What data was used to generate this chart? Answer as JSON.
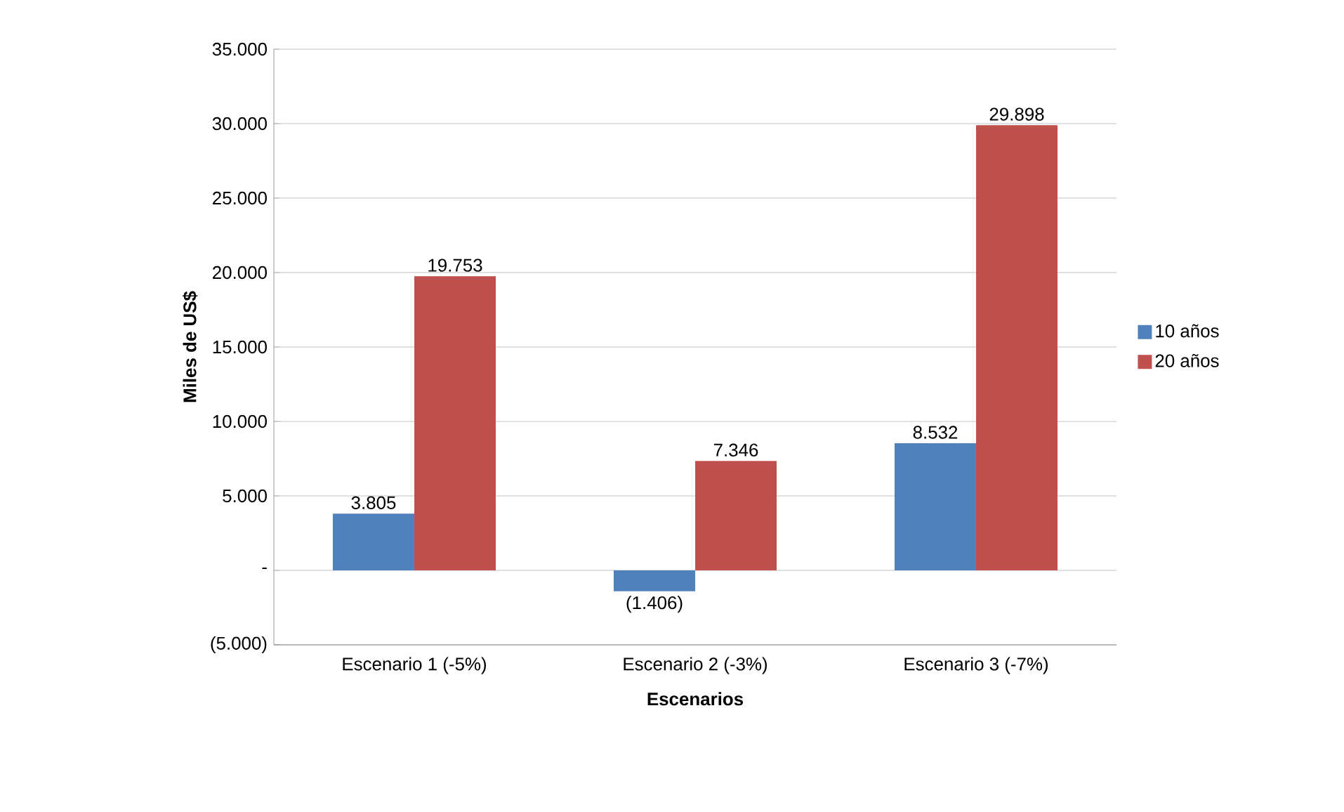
{
  "chart_data": {
    "type": "bar",
    "xlabel": "Escenarios",
    "ylabel": "Miles de US$",
    "categories": [
      "Escenario 1 (-5%)",
      "Escenario 2 (-3%)",
      "Escenario 3 (-7%)"
    ],
    "series": [
      {
        "name": "10 años",
        "color": "#4f81bd",
        "values": [
          3805,
          -1406,
          8532
        ],
        "value_labels": [
          "3.805",
          "(1.406)",
          "8.532"
        ]
      },
      {
        "name": "20 años",
        "color": "#c0504d",
        "values": [
          19753,
          7346,
          29898
        ],
        "value_labels": [
          "19.753",
          "7.346",
          "29.898"
        ]
      }
    ],
    "ylim": [
      -5000,
      35000
    ],
    "yticks": [
      {
        "value": -5000,
        "label": "(5.000)"
      },
      {
        "value": 0,
        "label": "-"
      },
      {
        "value": 5000,
        "label": "5.000"
      },
      {
        "value": 10000,
        "label": "10.000"
      },
      {
        "value": 15000,
        "label": "15.000"
      },
      {
        "value": 20000,
        "label": "20.000"
      },
      {
        "value": 25000,
        "label": "25.000"
      },
      {
        "value": 30000,
        "label": "30.000"
      },
      {
        "value": 35000,
        "label": "35.000"
      }
    ],
    "grid": "y",
    "legend": "right"
  }
}
